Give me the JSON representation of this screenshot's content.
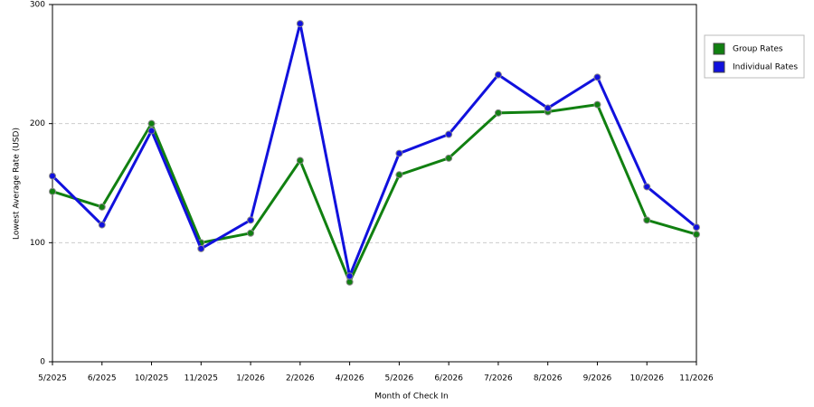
{
  "chart_data": {
    "type": "line",
    "x_label": "Month of Check In",
    "y_label": "Lowest Average Rate (USD)",
    "categories": [
      "5/2025",
      "6/2025",
      "10/2025",
      "11/2025",
      "1/2026",
      "2/2026",
      "4/2026",
      "5/2026",
      "6/2026",
      "7/2026",
      "8/2026",
      "9/2026",
      "10/2026",
      "11/2026"
    ],
    "series": [
      {
        "name": "Group Rates",
        "color": "#118011",
        "values": [
          143,
          130,
          200,
          100,
          108,
          169,
          67,
          157,
          171,
          209,
          210,
          216,
          119,
          107
        ]
      },
      {
        "name": "Individual Rates",
        "color": "#1111dd",
        "values": [
          156,
          115,
          194,
          95,
          119,
          284,
          72,
          175,
          191,
          241,
          213,
          239,
          147,
          113
        ]
      }
    ],
    "ylim": [
      0,
      300
    ],
    "yticks": [
      0,
      100,
      200,
      300
    ],
    "grid": true
  }
}
